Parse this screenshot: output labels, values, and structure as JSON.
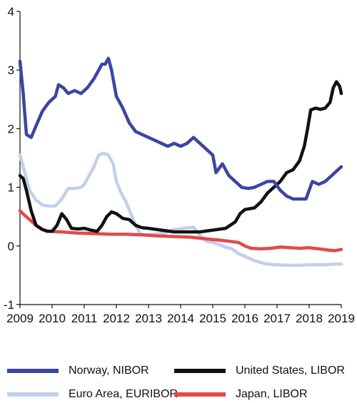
{
  "chart_data": {
    "type": "line",
    "title": "",
    "xlabel": "",
    "ylabel": "",
    "xlim": [
      2009,
      2019
    ],
    "ylim": [
      -1,
      4
    ],
    "x_ticks": [
      "2009",
      "2010",
      "2011",
      "2012",
      "2013",
      "2014",
      "2015",
      "2016",
      "2017",
      "2018",
      "2019"
    ],
    "y_ticks": [
      "-1",
      "0",
      "1",
      "2",
      "3",
      "4"
    ],
    "grid": false,
    "legend_position": "bottom",
    "series": [
      {
        "name": "Norway, NIBOR",
        "color": "#3a46a0",
        "points": [
          [
            2009.0,
            3.15
          ],
          [
            2009.1,
            2.6
          ],
          [
            2009.2,
            1.9
          ],
          [
            2009.35,
            1.85
          ],
          [
            2009.5,
            2.05
          ],
          [
            2009.7,
            2.3
          ],
          [
            2009.9,
            2.45
          ],
          [
            2010.1,
            2.55
          ],
          [
            2010.2,
            2.75
          ],
          [
            2010.35,
            2.7
          ],
          [
            2010.5,
            2.6
          ],
          [
            2010.7,
            2.65
          ],
          [
            2010.9,
            2.6
          ],
          [
            2011.1,
            2.7
          ],
          [
            2011.3,
            2.85
          ],
          [
            2011.45,
            3.0
          ],
          [
            2011.55,
            3.1
          ],
          [
            2011.65,
            3.1
          ],
          [
            2011.75,
            3.2
          ],
          [
            2011.85,
            3.0
          ],
          [
            2012.0,
            2.55
          ],
          [
            2012.2,
            2.35
          ],
          [
            2012.4,
            2.1
          ],
          [
            2012.6,
            1.95
          ],
          [
            2012.8,
            1.9
          ],
          [
            2013.0,
            1.85
          ],
          [
            2013.2,
            1.8
          ],
          [
            2013.4,
            1.75
          ],
          [
            2013.6,
            1.7
          ],
          [
            2013.8,
            1.75
          ],
          [
            2014.0,
            1.7
          ],
          [
            2014.2,
            1.75
          ],
          [
            2014.4,
            1.85
          ],
          [
            2014.6,
            1.75
          ],
          [
            2014.8,
            1.65
          ],
          [
            2015.0,
            1.55
          ],
          [
            2015.1,
            1.25
          ],
          [
            2015.3,
            1.4
          ],
          [
            2015.5,
            1.2
          ],
          [
            2015.7,
            1.1
          ],
          [
            2015.9,
            1.0
          ],
          [
            2016.1,
            0.98
          ],
          [
            2016.3,
            1.0
          ],
          [
            2016.5,
            1.05
          ],
          [
            2016.7,
            1.1
          ],
          [
            2016.9,
            1.1
          ],
          [
            2017.1,
            0.95
          ],
          [
            2017.3,
            0.85
          ],
          [
            2017.5,
            0.8
          ],
          [
            2017.7,
            0.8
          ],
          [
            2017.9,
            0.8
          ],
          [
            2018.1,
            1.1
          ],
          [
            2018.3,
            1.05
          ],
          [
            2018.5,
            1.1
          ],
          [
            2018.7,
            1.2
          ],
          [
            2018.9,
            1.3
          ],
          [
            2019.0,
            1.35
          ]
        ]
      },
      {
        "name": "Euro Area, EURIBOR",
        "color": "#c2d0ec",
        "points": [
          [
            2009.0,
            1.55
          ],
          [
            2009.15,
            1.25
          ],
          [
            2009.3,
            0.95
          ],
          [
            2009.5,
            0.78
          ],
          [
            2009.7,
            0.7
          ],
          [
            2009.9,
            0.68
          ],
          [
            2010.1,
            0.68
          ],
          [
            2010.3,
            0.8
          ],
          [
            2010.5,
            0.98
          ],
          [
            2010.7,
            0.98
          ],
          [
            2010.9,
            1.0
          ],
          [
            2011.0,
            1.05
          ],
          [
            2011.15,
            1.2
          ],
          [
            2011.3,
            1.35
          ],
          [
            2011.45,
            1.55
          ],
          [
            2011.6,
            1.58
          ],
          [
            2011.75,
            1.55
          ],
          [
            2011.9,
            1.4
          ],
          [
            2012.0,
            1.1
          ],
          [
            2012.15,
            0.9
          ],
          [
            2012.3,
            0.75
          ],
          [
            2012.45,
            0.55
          ],
          [
            2012.6,
            0.35
          ],
          [
            2012.75,
            0.2
          ],
          [
            2012.9,
            0.19
          ],
          [
            2013.2,
            0.2
          ],
          [
            2013.5,
            0.22
          ],
          [
            2013.8,
            0.28
          ],
          [
            2014.1,
            0.3
          ],
          [
            2014.4,
            0.32
          ],
          [
            2014.6,
            0.18
          ],
          [
            2014.8,
            0.08
          ],
          [
            2015.0,
            0.06
          ],
          [
            2015.2,
            0.02
          ],
          [
            2015.4,
            -0.02
          ],
          [
            2015.6,
            -0.05
          ],
          [
            2015.8,
            -0.13
          ],
          [
            2016.0,
            -0.18
          ],
          [
            2016.3,
            -0.25
          ],
          [
            2016.6,
            -0.3
          ],
          [
            2016.9,
            -0.32
          ],
          [
            2017.3,
            -0.33
          ],
          [
            2017.7,
            -0.33
          ],
          [
            2018.1,
            -0.32
          ],
          [
            2018.5,
            -0.32
          ],
          [
            2018.8,
            -0.31
          ],
          [
            2019.0,
            -0.31
          ]
        ]
      },
      {
        "name": "United States, LIBOR",
        "color": "#111111",
        "points": [
          [
            2009.0,
            1.2
          ],
          [
            2009.1,
            1.15
          ],
          [
            2009.2,
            0.95
          ],
          [
            2009.35,
            0.6
          ],
          [
            2009.5,
            0.35
          ],
          [
            2009.7,
            0.28
          ],
          [
            2009.85,
            0.25
          ],
          [
            2010.0,
            0.25
          ],
          [
            2010.15,
            0.35
          ],
          [
            2010.3,
            0.55
          ],
          [
            2010.45,
            0.45
          ],
          [
            2010.6,
            0.3
          ],
          [
            2010.8,
            0.29
          ],
          [
            2011.0,
            0.3
          ],
          [
            2011.2,
            0.27
          ],
          [
            2011.4,
            0.25
          ],
          [
            2011.55,
            0.35
          ],
          [
            2011.7,
            0.5
          ],
          [
            2011.85,
            0.58
          ],
          [
            2012.0,
            0.55
          ],
          [
            2012.2,
            0.47
          ],
          [
            2012.4,
            0.45
          ],
          [
            2012.6,
            0.35
          ],
          [
            2012.8,
            0.31
          ],
          [
            2013.0,
            0.3
          ],
          [
            2013.4,
            0.27
          ],
          [
            2013.8,
            0.24
          ],
          [
            2014.2,
            0.24
          ],
          [
            2014.6,
            0.24
          ],
          [
            2015.0,
            0.27
          ],
          [
            2015.4,
            0.3
          ],
          [
            2015.7,
            0.41
          ],
          [
            2015.85,
            0.55
          ],
          [
            2016.0,
            0.62
          ],
          [
            2016.3,
            0.65
          ],
          [
            2016.5,
            0.75
          ],
          [
            2016.7,
            0.9
          ],
          [
            2016.9,
            1.0
          ],
          [
            2017.1,
            1.1
          ],
          [
            2017.3,
            1.25
          ],
          [
            2017.5,
            1.3
          ],
          [
            2017.7,
            1.45
          ],
          [
            2017.85,
            1.7
          ],
          [
            2017.95,
            2.0
          ],
          [
            2018.05,
            2.32
          ],
          [
            2018.2,
            2.35
          ],
          [
            2018.35,
            2.33
          ],
          [
            2018.5,
            2.35
          ],
          [
            2018.65,
            2.45
          ],
          [
            2018.75,
            2.7
          ],
          [
            2018.85,
            2.8
          ],
          [
            2018.95,
            2.72
          ],
          [
            2019.0,
            2.6
          ]
        ]
      },
      {
        "name": "Japan, LIBOR",
        "color": "#e24a4a",
        "points": [
          [
            2009.0,
            0.6
          ],
          [
            2009.15,
            0.52
          ],
          [
            2009.3,
            0.45
          ],
          [
            2009.5,
            0.35
          ],
          [
            2009.7,
            0.28
          ],
          [
            2009.9,
            0.25
          ],
          [
            2010.3,
            0.24
          ],
          [
            2010.8,
            0.22
          ],
          [
            2011.3,
            0.21
          ],
          [
            2011.8,
            0.2
          ],
          [
            2012.3,
            0.2
          ],
          [
            2012.8,
            0.19
          ],
          [
            2013.3,
            0.17
          ],
          [
            2013.8,
            0.16
          ],
          [
            2014.3,
            0.15
          ],
          [
            2014.8,
            0.12
          ],
          [
            2015.2,
            0.1
          ],
          [
            2015.5,
            0.08
          ],
          [
            2015.8,
            0.06
          ],
          [
            2016.0,
            0.0
          ],
          [
            2016.2,
            -0.04
          ],
          [
            2016.5,
            -0.05
          ],
          [
            2016.8,
            -0.04
          ],
          [
            2017.1,
            -0.02
          ],
          [
            2017.4,
            -0.03
          ],
          [
            2017.7,
            -0.04
          ],
          [
            2018.0,
            -0.03
          ],
          [
            2018.3,
            -0.05
          ],
          [
            2018.6,
            -0.07
          ],
          [
            2018.8,
            -0.08
          ],
          [
            2019.0,
            -0.06
          ]
        ]
      }
    ]
  }
}
